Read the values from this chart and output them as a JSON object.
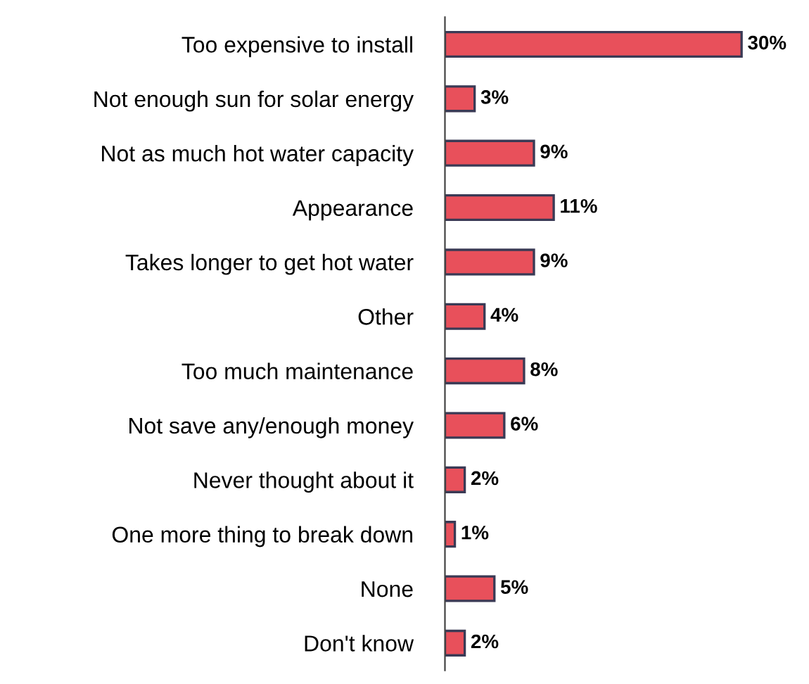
{
  "chart_data": {
    "type": "bar",
    "orientation": "horizontal",
    "categories": [
      "Too expensive to install",
      "Not enough sun for solar energy",
      "Not as much hot water capacity",
      "Appearance",
      "Takes longer to get hot water",
      "Other",
      "Too much maintenance",
      "Not save any/enough money",
      "Never thought about it",
      "One more thing to break down",
      "None",
      "Don't know"
    ],
    "values": [
      30,
      3,
      9,
      11,
      9,
      4,
      8,
      6,
      2,
      1,
      5,
      2
    ],
    "value_labels": [
      "30%",
      "3%",
      "9%",
      "11%",
      "9%",
      "4%",
      "8%",
      "6%",
      "2%",
      "1%",
      "5%",
      "2%"
    ],
    "color": "#e8505b",
    "grid": false,
    "legend": false
  }
}
